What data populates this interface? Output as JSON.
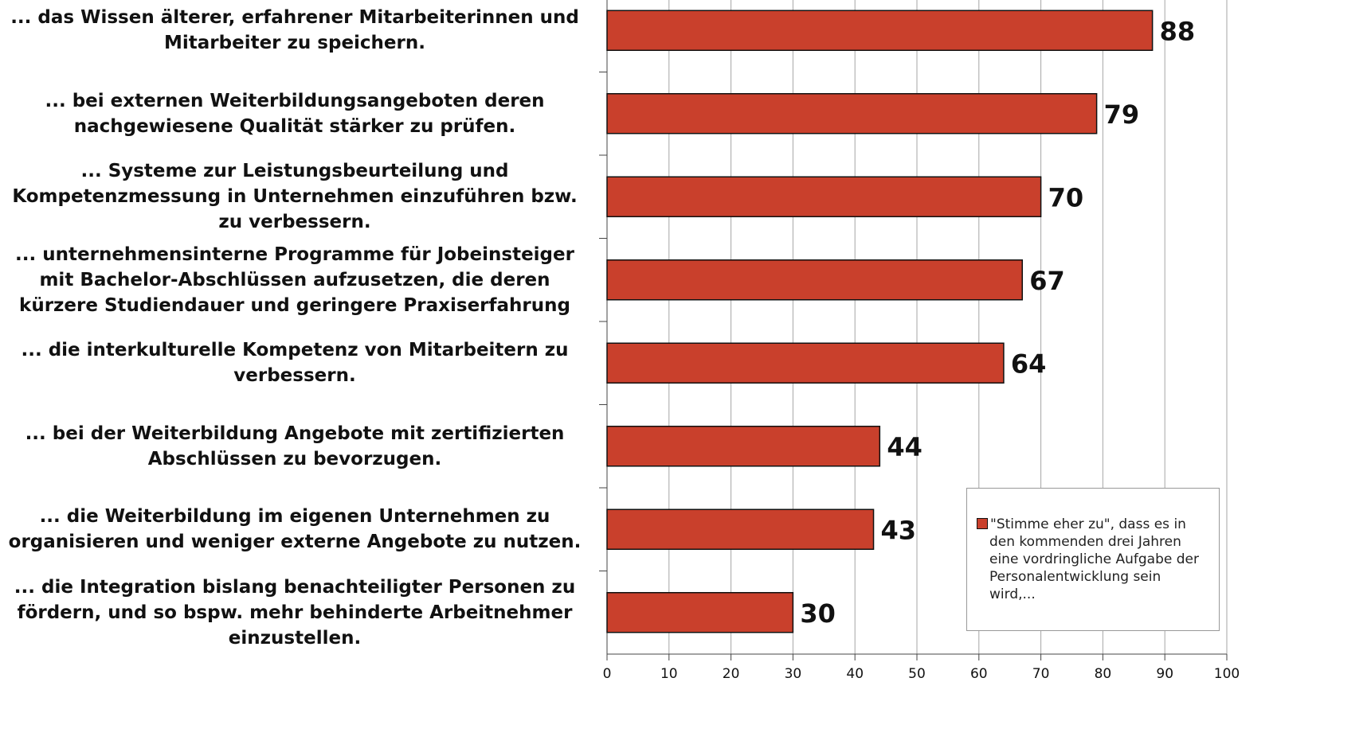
{
  "chart_data": {
    "type": "barh",
    "categories": [
      "... das Wissen älterer, erfahrener Mitarbeiterinnen und Mitarbeiter zu speichern.",
      "... bei externen Weiterbildungsangeboten deren nachgewiesene Qualität stärker zu prüfen.",
      "... Systeme zur Leistungsbeurteilung und Kompetenzmessung in Unternehmen einzuführen bzw. zu verbessern.",
      "... unternehmensinterne Programme für Jobeinsteiger mit Bachelor-Abschlüssen aufzusetzen, die deren kürzere Studiendauer und geringere Praxiserfahrung",
      "... die interkulturelle Kompetenz von Mitarbeitern zu verbessern.",
      "... bei der Weiterbildung Angebote mit zertifizierten Abschlüssen zu bevorzugen.",
      "... die Weiterbildung im eigenen Unternehmen zu organisieren und weniger externe Angebote zu nutzen.",
      "... die Integration bislang benachteiligter Personen zu fördern, und so bspw. mehr behinderte Arbeitnehmer einzustellen."
    ],
    "series": [
      {
        "name": "\"Stimme eher zu\", dass es in den kommenden drei Jahren eine vordringliche Aufgabe der Personalentwicklung sein wird,...",
        "color": "#c9402c",
        "values": [
          88,
          79,
          70,
          67,
          64,
          44,
          43,
          30
        ]
      }
    ],
    "xlim": [
      0,
      100
    ],
    "xticks": [
      0,
      10,
      20,
      30,
      40,
      50,
      60,
      70,
      80,
      90,
      100
    ],
    "grid": true
  }
}
